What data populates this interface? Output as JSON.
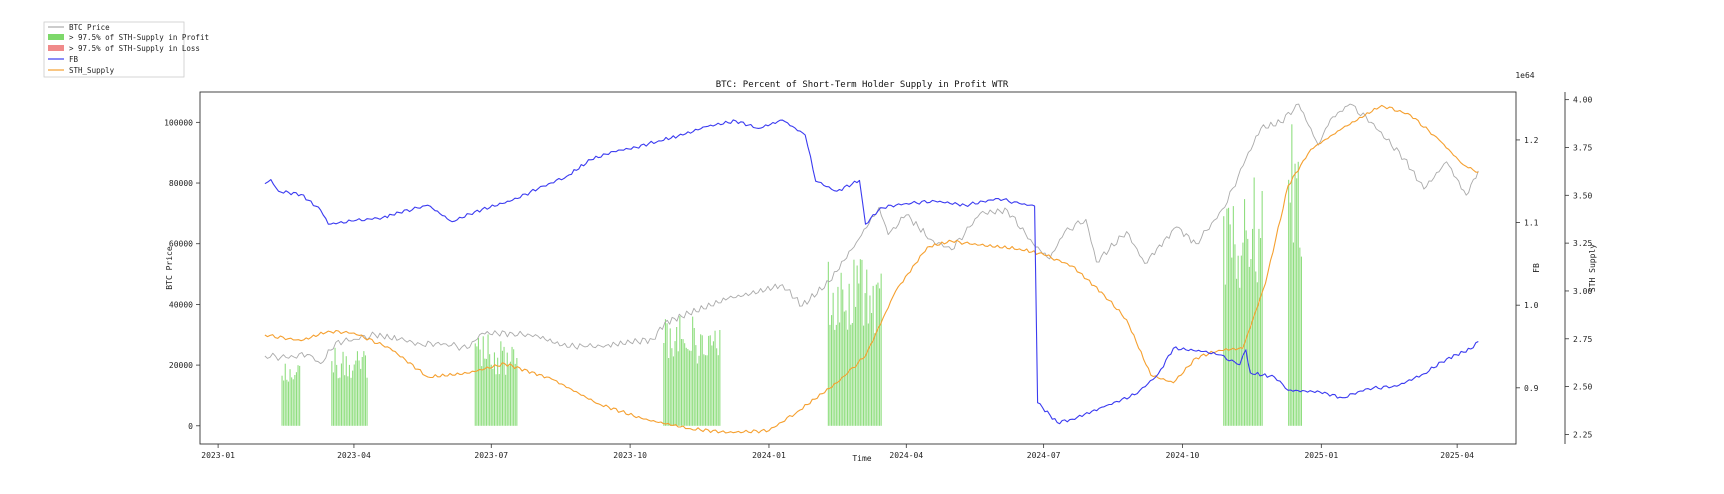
{
  "chart_data": {
    "type": "line",
    "title": "BTC: Percent of Short-Term Holder Supply in Profit WTR",
    "xlabel": "Time",
    "y_left_label": "BTC Price",
    "y_right1_label": "FB",
    "y_right2_label": "STH Supply",
    "y_right2_offset": "1e64",
    "x_ticks": [
      "2023-01",
      "2023-04",
      "2023-07",
      "2023-10",
      "2024-01",
      "2024-04",
      "2024-07",
      "2024-10",
      "2025-01",
      "2025-04"
    ],
    "y_left_ticks": [
      "0",
      "20000",
      "40000",
      "60000",
      "80000",
      "100000"
    ],
    "y_right1_ticks": [
      "0.9",
      "1.0",
      "1.1",
      "1.2"
    ],
    "y_right2_ticks": [
      "2.25",
      "2.50",
      "2.75",
      "3.00",
      "3.25",
      "3.50",
      "3.75",
      "4.00"
    ],
    "x_range": [
      "2022-12-20",
      "2025-05-10"
    ],
    "y_left_range": [
      -6000,
      110000
    ],
    "y_right1_range": [
      0.832,
      1.258
    ],
    "y_right2_range": [
      2.2,
      4.04
    ],
    "grid": false,
    "legend_position": "outside top-left",
    "legend": [
      {
        "label": "BTC Price",
        "kind": "line",
        "color": "#aaaaaa"
      },
      {
        "label": "> 97.5% of STH-Supply in Profit",
        "kind": "patch",
        "color": "#7dd86a"
      },
      {
        "label": "> 97.5% of STH-Supply in Loss",
        "kind": "patch",
        "color": "#f08a8a"
      },
      {
        "label": "FB",
        "kind": "line",
        "color": "#3b3bf0"
      },
      {
        "label": "STH_Supply",
        "kind": "line",
        "color": "#f5a030"
      }
    ],
    "series": [
      {
        "name": "BTC Price",
        "axis": "left",
        "color": "#aaaaaa",
        "points": [
          [
            "2023-02-01",
            23000
          ],
          [
            "2023-02-15",
            22500
          ],
          [
            "2023-03-01",
            23500
          ],
          [
            "2023-03-10",
            20500
          ],
          [
            "2023-03-20",
            27500
          ],
          [
            "2023-04-01",
            28500
          ],
          [
            "2023-04-15",
            30000
          ],
          [
            "2023-05-01",
            28500
          ],
          [
            "2023-05-15",
            27000
          ],
          [
            "2023-06-01",
            27000
          ],
          [
            "2023-06-15",
            25500
          ],
          [
            "2023-06-25",
            30500
          ],
          [
            "2023-07-15",
            30500
          ],
          [
            "2023-08-01",
            29500
          ],
          [
            "2023-08-17",
            26500
          ],
          [
            "2023-09-01",
            26000
          ],
          [
            "2023-09-15",
            26500
          ],
          [
            "2023-10-01",
            27500
          ],
          [
            "2023-10-16",
            28500
          ],
          [
            "2023-10-24",
            34000
          ],
          [
            "2023-11-09",
            37000
          ],
          [
            "2023-12-05",
            42000
          ],
          [
            "2023-12-20",
            43500
          ],
          [
            "2024-01-10",
            46500
          ],
          [
            "2024-01-23",
            39500
          ],
          [
            "2024-02-10",
            47500
          ],
          [
            "2024-02-28",
            60500
          ],
          [
            "2024-03-14",
            72000
          ],
          [
            "2024-03-20",
            63000
          ],
          [
            "2024-04-01",
            69500
          ],
          [
            "2024-04-17",
            61500
          ],
          [
            "2024-05-01",
            58000
          ],
          [
            "2024-05-20",
            70000
          ],
          [
            "2024-06-07",
            71000
          ],
          [
            "2024-06-24",
            60000
          ],
          [
            "2024-07-05",
            55000
          ],
          [
            "2024-07-15",
            64000
          ],
          [
            "2024-07-29",
            68000
          ],
          [
            "2024-08-05",
            54000
          ],
          [
            "2024-08-25",
            64000
          ],
          [
            "2024-09-06",
            53500
          ],
          [
            "2024-09-27",
            65500
          ],
          [
            "2024-10-10",
            60000
          ],
          [
            "2024-10-29",
            72000
          ],
          [
            "2024-11-12",
            88000
          ],
          [
            "2024-11-22",
            98000
          ],
          [
            "2024-12-05",
            100000
          ],
          [
            "2024-12-17",
            106000
          ],
          [
            "2024-12-30",
            92500
          ],
          [
            "2025-01-07",
            101000
          ],
          [
            "2025-01-20",
            106000
          ],
          [
            "2025-02-03",
            100000
          ],
          [
            "2025-02-25",
            88000
          ],
          [
            "2025-03-10",
            78000
          ],
          [
            "2025-03-25",
            87000
          ],
          [
            "2025-04-07",
            76000
          ],
          [
            "2025-04-15",
            84000
          ]
        ]
      },
      {
        "name": "FB",
        "axis": "right1",
        "color": "#3b3bf0",
        "points": [
          [
            "2023-02-01",
            1.147
          ],
          [
            "2023-02-05",
            1.152
          ],
          [
            "2023-02-10",
            1.138
          ],
          [
            "2023-02-25",
            1.134
          ],
          [
            "2023-03-10",
            1.115
          ],
          [
            "2023-03-15",
            1.098
          ],
          [
            "2023-04-01",
            1.102
          ],
          [
            "2023-04-20",
            1.106
          ],
          [
            "2023-05-01",
            1.112
          ],
          [
            "2023-05-20",
            1.121
          ],
          [
            "2023-06-05",
            1.101
          ],
          [
            "2023-06-20",
            1.113
          ],
          [
            "2023-07-15",
            1.127
          ],
          [
            "2023-08-01",
            1.141
          ],
          [
            "2023-08-20",
            1.156
          ],
          [
            "2023-09-05",
            1.176
          ],
          [
            "2023-09-20",
            1.186
          ],
          [
            "2023-10-05",
            1.191
          ],
          [
            "2023-10-20",
            1.199
          ],
          [
            "2023-11-05",
            1.206
          ],
          [
            "2023-11-20",
            1.216
          ],
          [
            "2023-12-10",
            1.223
          ],
          [
            "2023-12-25",
            1.214
          ],
          [
            "2024-01-10",
            1.224
          ],
          [
            "2024-01-25",
            1.206
          ],
          [
            "2024-02-01",
            1.15
          ],
          [
            "2024-02-15",
            1.138
          ],
          [
            "2024-03-01",
            1.151
          ],
          [
            "2024-03-05",
            1.098
          ],
          [
            "2024-03-15",
            1.118
          ],
          [
            "2024-04-01",
            1.123
          ],
          [
            "2024-04-20",
            1.126
          ],
          [
            "2024-05-10",
            1.121
          ],
          [
            "2024-06-01",
            1.129
          ],
          [
            "2024-06-15",
            1.123
          ],
          [
            "2024-06-25",
            1.12
          ],
          [
            "2024-06-27",
            0.882
          ],
          [
            "2024-07-10",
            0.858
          ],
          [
            "2024-07-20",
            0.862
          ],
          [
            "2024-08-10",
            0.877
          ],
          [
            "2024-09-01",
            0.893
          ],
          [
            "2024-09-15",
            0.917
          ],
          [
            "2024-09-25",
            0.948
          ],
          [
            "2024-10-15",
            0.944
          ],
          [
            "2024-10-25",
            0.94
          ],
          [
            "2024-11-08",
            0.928
          ],
          [
            "2024-11-12",
            0.946
          ],
          [
            "2024-11-15",
            0.918
          ],
          [
            "2024-12-01",
            0.913
          ],
          [
            "2024-12-10",
            0.897
          ],
          [
            "2024-12-31",
            0.895
          ],
          [
            "2025-01-15",
            0.888
          ],
          [
            "2025-02-01",
            0.899
          ],
          [
            "2025-02-20",
            0.902
          ],
          [
            "2025-03-10",
            0.917
          ],
          [
            "2025-03-25",
            0.935
          ],
          [
            "2025-04-10",
            0.947
          ],
          [
            "2025-04-15",
            0.956
          ]
        ]
      },
      {
        "name": "STH_Supply",
        "axis": "right2",
        "color": "#f5a030",
        "points": [
          [
            "2023-02-01",
            2.77
          ],
          [
            "2023-02-25",
            2.74
          ],
          [
            "2023-03-15",
            2.79
          ],
          [
            "2023-04-01",
            2.78
          ],
          [
            "2023-04-25",
            2.7
          ],
          [
            "2023-05-20",
            2.55
          ],
          [
            "2023-06-15",
            2.57
          ],
          [
            "2023-07-10",
            2.62
          ],
          [
            "2023-08-10",
            2.54
          ],
          [
            "2023-09-10",
            2.41
          ],
          [
            "2023-10-10",
            2.33
          ],
          [
            "2023-11-10",
            2.28
          ],
          [
            "2023-12-05",
            2.26
          ],
          [
            "2024-01-01",
            2.27
          ],
          [
            "2024-01-20",
            2.37
          ],
          [
            "2024-02-15",
            2.52
          ],
          [
            "2024-03-05",
            2.66
          ],
          [
            "2024-03-25",
            3.0
          ],
          [
            "2024-04-15",
            3.23
          ],
          [
            "2024-05-01",
            3.26
          ],
          [
            "2024-05-20",
            3.24
          ],
          [
            "2024-06-15",
            3.22
          ],
          [
            "2024-07-01",
            3.19
          ],
          [
            "2024-07-20",
            3.13
          ],
          [
            "2024-08-10",
            2.98
          ],
          [
            "2024-08-25",
            2.85
          ],
          [
            "2024-09-10",
            2.56
          ],
          [
            "2024-09-25",
            2.52
          ],
          [
            "2024-10-10",
            2.65
          ],
          [
            "2024-10-25",
            2.69
          ],
          [
            "2024-11-10",
            2.7
          ],
          [
            "2024-11-25",
            3.04
          ],
          [
            "2024-12-10",
            3.55
          ],
          [
            "2024-12-25",
            3.74
          ],
          [
            "2025-01-15",
            3.85
          ],
          [
            "2025-02-10",
            3.97
          ],
          [
            "2025-03-01",
            3.92
          ],
          [
            "2025-03-20",
            3.79
          ],
          [
            "2025-04-05",
            3.66
          ],
          [
            "2025-04-15",
            3.62
          ]
        ]
      }
    ],
    "profit_regions": [
      {
        "start": "2023-02-12",
        "end": "2023-02-24",
        "price": 23500
      },
      {
        "start": "2023-03-17",
        "end": "2023-04-10",
        "price": 28000
      },
      {
        "start": "2023-06-20",
        "end": "2023-07-18",
        "price": 30200
      },
      {
        "start": "2023-10-23",
        "end": "2023-11-30",
        "price": 36500
      },
      {
        "start": "2024-02-09",
        "end": "2024-03-15",
        "price": 55000
      },
      {
        "start": "2024-10-28",
        "end": "2024-11-23",
        "price": 82000
      },
      {
        "start": "2024-12-10",
        "end": "2024-12-19",
        "price": 101000
      }
    ],
    "loss_regions": []
  }
}
